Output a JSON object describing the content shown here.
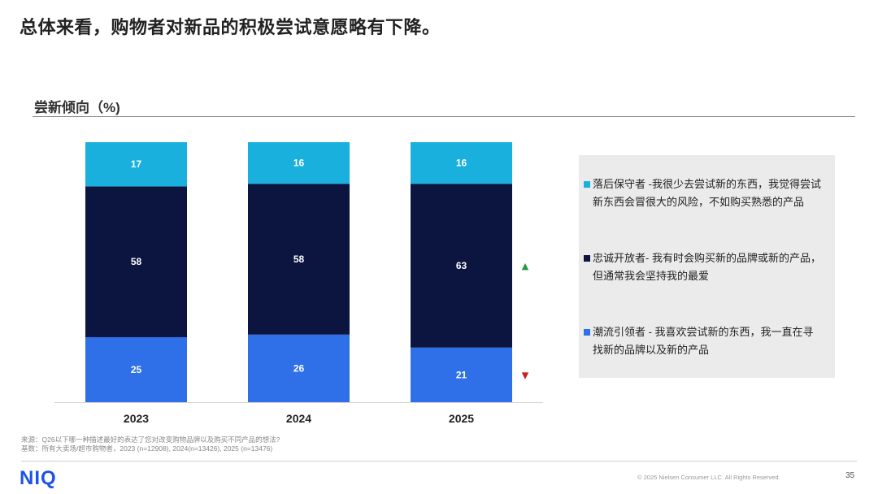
{
  "header": {
    "title": "总体来看，购物者对新品的积极尝试意愿略有下降。",
    "subtitle": "尝新倾向（%)"
  },
  "chart_data": {
    "type": "bar",
    "stacked": true,
    "categories": [
      "2023",
      "2024",
      "2025"
    ],
    "series": [
      {
        "name": "潮流引领者",
        "values": [
          25,
          26,
          21
        ],
        "color": "#2f6fe8",
        "label_color": "#ffffff"
      },
      {
        "name": "忠诚开放者",
        "values": [
          58,
          58,
          63
        ],
        "color": "#0c1440",
        "label_color": "#ffffff"
      },
      {
        "name": "落后保守者",
        "values": [
          17,
          16,
          16
        ],
        "color": "#19b0de",
        "label_color": "#ffffff"
      }
    ],
    "ylim": [
      0,
      100
    ],
    "indicators": [
      {
        "series": "忠诚开放者",
        "direction": "up",
        "symbol": "▲",
        "color": "#1f9b3c"
      },
      {
        "series": "潮流引领者",
        "direction": "down",
        "symbol": "▼",
        "color": "#c81e1e"
      }
    ]
  },
  "legend": {
    "items": [
      {
        "color": "#19b0de",
        "line1": "落后保守者 -我很少去尝试新的东西，我觉得尝试",
        "line2": "新东西会冒很大的风险，不如购买熟悉的产品"
      },
      {
        "color": "#0c1440",
        "line1": "忠诚开放者- 我有时会购买新的品牌或新的产品，",
        "line2": "但通常我会坚持我的最爱"
      },
      {
        "color": "#2f6fe8",
        "line1": "潮流引领者 - 我喜欢尝试新的东西，我一直在寻",
        "line2": "找新的品牌以及新的产品"
      }
    ]
  },
  "footer": {
    "source_line1": "来源：Q26以下哪一种描述最好的表达了您对改变购物品牌以及购买不同产品的想法?",
    "source_line2": "基数：所有大卖场/超市购物者，2023 (n=12908), 2024(n=13426), 2025 (n=13476)",
    "logo": "NIQ",
    "copyright": "© 2025 Nielsen Consumer LLC. All Rights Reserved.",
    "page_number": "35"
  }
}
